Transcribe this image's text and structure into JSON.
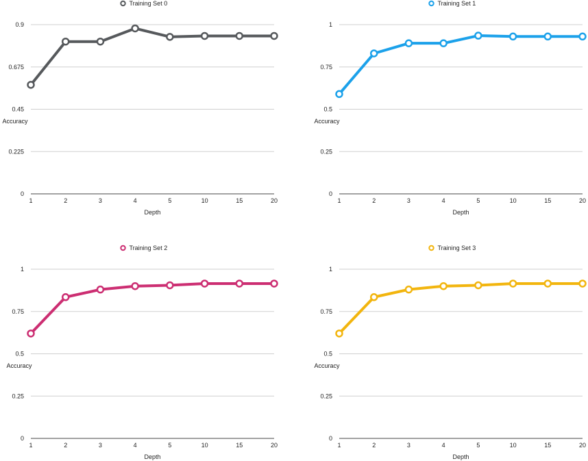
{
  "chart_data": [
    {
      "type": "line",
      "series": [
        {
          "name": "Training Set 0",
          "color": "#56595c",
          "values": [
            0.58,
            0.81,
            0.81,
            0.88,
            0.835,
            0.84,
            0.84,
            0.84
          ]
        }
      ],
      "categories": [
        "1",
        "2",
        "3",
        "4",
        "5",
        "10",
        "15",
        "20"
      ],
      "xlabel": "Depth",
      "ylabel": "Accuracy",
      "yticks": [
        "0",
        "0.225",
        "0.45",
        "0.675",
        "0.9"
      ],
      "ylim": [
        0,
        0.9
      ],
      "grid": true,
      "legend": "top-center"
    },
    {
      "type": "line",
      "series": [
        {
          "name": "Training Set 1",
          "color": "#1ba1ea",
          "values": [
            0.59,
            0.83,
            0.89,
            0.89,
            0.935,
            0.93,
            0.93,
            0.93
          ]
        }
      ],
      "categories": [
        "1",
        "2",
        "3",
        "4",
        "5",
        "10",
        "15",
        "20"
      ],
      "xlabel": "Depth",
      "ylabel": "Accuracy",
      "yticks": [
        "0",
        "0.25",
        "0.5",
        "0.75",
        "1"
      ],
      "ylim": [
        0,
        1
      ],
      "grid": true,
      "legend": "top-center"
    },
    {
      "type": "line",
      "series": [
        {
          "name": "Training Set 2",
          "color": "#cc2e72",
          "values": [
            0.62,
            0.835,
            0.88,
            0.9,
            0.905,
            0.915,
            0.915,
            0.915
          ]
        }
      ],
      "categories": [
        "1",
        "2",
        "3",
        "4",
        "5",
        "10",
        "15",
        "20"
      ],
      "xlabel": "Depth",
      "ylabel": "Accuracy",
      "yticks": [
        "0",
        "0.25",
        "0.5",
        "0.75",
        "1"
      ],
      "ylim": [
        0,
        1
      ],
      "grid": true,
      "legend": "top-center"
    },
    {
      "type": "line",
      "series": [
        {
          "name": "Training Set 3",
          "color": "#f2b50e",
          "values": [
            0.62,
            0.835,
            0.88,
            0.9,
            0.905,
            0.915,
            0.915,
            0.915
          ]
        }
      ],
      "categories": [
        "1",
        "2",
        "3",
        "4",
        "5",
        "10",
        "15",
        "20"
      ],
      "xlabel": "Depth",
      "ylabel": "Accuracy",
      "yticks": [
        "0",
        "0.25",
        "0.5",
        "0.75",
        "1"
      ],
      "ylim": [
        0,
        1
      ],
      "grid": true,
      "legend": "top-center"
    }
  ]
}
